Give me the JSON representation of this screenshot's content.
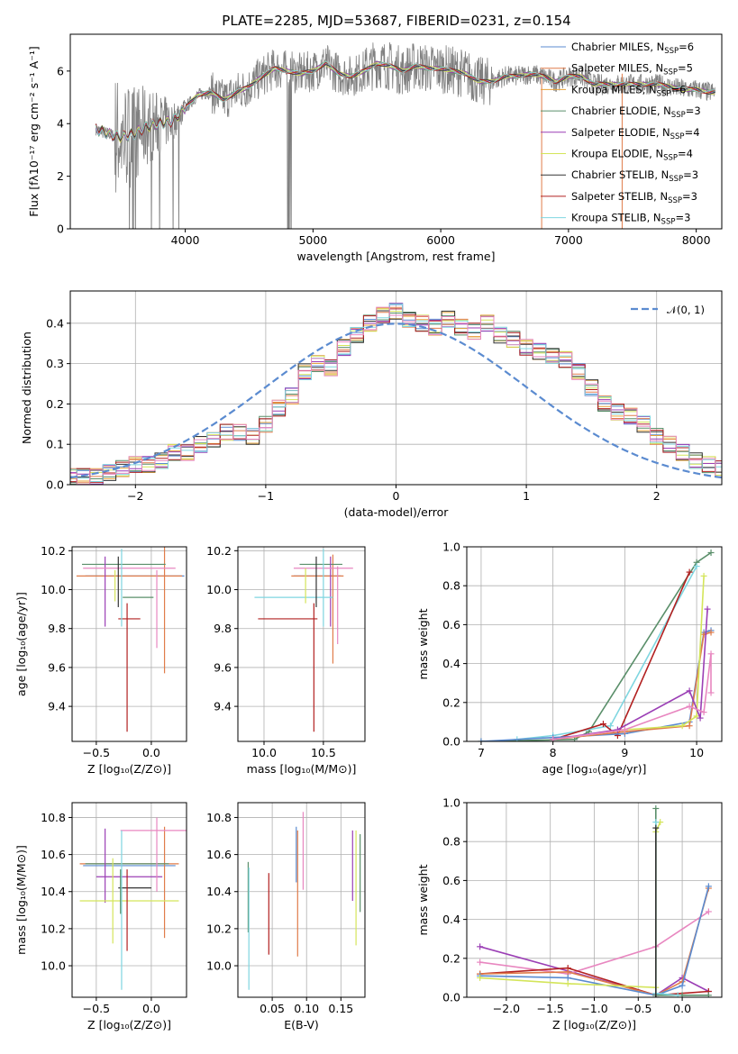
{
  "figure": {
    "title": "PLATE=2285, MJD=53687, FIBERID=0231, z=0.154"
  },
  "chart_data": [
    {
      "id": "spectrum",
      "type": "line",
      "title": "PLATE=2285, MJD=53687, FIBERID=0231, z=0.154",
      "xlabel": "wavelength [Angstrom, rest frame]",
      "ylabel": "Flux [fλ10⁻¹⁷ erg cm⁻² s⁻¹ A⁻¹]",
      "xlim": [
        3100,
        8200
      ],
      "ylim": [
        0,
        7.4
      ],
      "xticks": [
        "4000",
        "5000",
        "6000",
        "7000",
        "8000"
      ],
      "yticks": [
        "0",
        "2",
        "4",
        "6"
      ],
      "grid": false,
      "legend_position": "top-right",
      "data_color": "#808080",
      "data_continuum": {
        "x": [
          3300,
          3400,
          3500,
          3600,
          3700,
          3800,
          3900,
          4000,
          4100,
          4200,
          4300,
          4400,
          4500,
          4600,
          4700,
          4800,
          4900,
          5000,
          5100,
          5200,
          5300,
          5400,
          5500,
          5600,
          5700,
          5800,
          5900,
          6000,
          6100,
          6200,
          6300,
          6400,
          6500,
          6600,
          6700,
          6800,
          6900,
          7000,
          7100,
          7200,
          7300,
          7400,
          7500,
          7600,
          7700,
          7800,
          7900,
          8000,
          8100,
          8200
        ],
        "y": [
          3.8,
          3.6,
          3.5,
          3.6,
          3.9,
          4.0,
          4.1,
          4.6,
          5.1,
          5.2,
          4.9,
          5.2,
          5.4,
          5.8,
          6.1,
          6.0,
          5.9,
          6.0,
          6.3,
          5.9,
          5.8,
          6.0,
          6.3,
          6.2,
          6.0,
          6.2,
          6.1,
          6.1,
          6.0,
          5.9,
          5.6,
          5.6,
          5.8,
          5.8,
          5.9,
          5.8,
          5.6,
          5.8,
          5.8,
          5.5,
          5.5,
          5.5,
          5.5,
          5.5,
          5.5,
          5.4,
          5.3,
          5.3,
          5.2,
          5.2
        ]
      },
      "series": [
        {
          "name": "Chabrier MILES, N",
          "sub": "SSP",
          "suffix": "=6",
          "color": "#5b8bd0"
        },
        {
          "name": "Salpeter MILES, N",
          "sub": "SSP",
          "suffix": "=5",
          "color": "#e07c4a"
        },
        {
          "name": "Kroupa MILES, N",
          "sub": "SSP",
          "suffix": "=6",
          "color": "#e8a33a"
        },
        {
          "name": "Chabrier ELODIE, N",
          "sub": "SSP",
          "suffix": "=3",
          "color": "#5a8f6a"
        },
        {
          "name": "Salpeter ELODIE, N",
          "sub": "SSP",
          "suffix": "=4",
          "color": "#9b3fb5"
        },
        {
          "name": "Kroupa ELODIE, N",
          "sub": "SSP",
          "suffix": "=4",
          "color": "#d4e55a"
        },
        {
          "name": "Chabrier STELIB, N",
          "sub": "SSP",
          "suffix": "=3",
          "color": "#333333"
        },
        {
          "name": "Salpeter STELIB, N",
          "sub": "SSP",
          "suffix": "=3",
          "color": "#b22020"
        },
        {
          "name": "Kroupa STELIB, N",
          "sub": "SSP",
          "suffix": "=3",
          "color": "#7fd6e0"
        }
      ]
    },
    {
      "id": "residuals",
      "type": "step",
      "xlabel": "(data-model)/error",
      "ylabel": "Normed distribution",
      "xlim": [
        -2.5,
        2.5
      ],
      "ylim": [
        0,
        0.48
      ],
      "xticks": [
        "−2",
        "−1",
        "0",
        "1",
        "2"
      ],
      "yticks": [
        "0.0",
        "0.1",
        "0.2",
        "0.3",
        "0.4"
      ],
      "grid": true,
      "legend_position": "top-right",
      "legend_label": "𝒩(0, 1)",
      "gaussian": {
        "mean": 0,
        "sigma": 1,
        "color": "#5b8bd0"
      },
      "bin_width": 0.1,
      "histogram": [
        0.02,
        0.02,
        0.02,
        0.03,
        0.04,
        0.05,
        0.05,
        0.06,
        0.08,
        0.08,
        0.1,
        0.11,
        0.13,
        0.13,
        0.12,
        0.15,
        0.19,
        0.22,
        0.28,
        0.3,
        0.29,
        0.34,
        0.37,
        0.4,
        0.42,
        0.43,
        0.41,
        0.4,
        0.39,
        0.41,
        0.39,
        0.38,
        0.4,
        0.37,
        0.36,
        0.34,
        0.33,
        0.32,
        0.31,
        0.28,
        0.24,
        0.2,
        0.18,
        0.17,
        0.15,
        0.12,
        0.1,
        0.08,
        0.06,
        0.05,
        0.04
      ]
    },
    {
      "id": "age-vs-Z",
      "type": "errorbar",
      "xlabel": "Z [log₁₀(Z/Z⊙)]",
      "ylabel": "age  [log₁₀(age/yr)]",
      "xlim": [
        -0.72,
        0.32
      ],
      "ylim": [
        9.22,
        10.22
      ],
      "xticks": [
        "−0.5",
        "0.0"
      ],
      "yticks": [
        "9.4",
        "9.6",
        "9.8",
        "10.0",
        "10.2"
      ],
      "grid": true,
      "points": [
        {
          "x": -0.15,
          "y": 10.07,
          "xerr": 0.45,
          "yerr": 0.0,
          "color": "#5b8bd0"
        },
        {
          "x": -0.2,
          "y": 10.07,
          "xerr": 0.48,
          "yerr": 0.0,
          "color": "#e07c4a"
        },
        {
          "x": 0.12,
          "y": 9.9,
          "xerr": 0.0,
          "yerr": 0.33,
          "color": "#e07c4a"
        },
        {
          "x": -0.25,
          "y": 10.13,
          "xerr": 0.38,
          "yerr": 0.0,
          "color": "#5a8f6a"
        },
        {
          "x": -0.42,
          "y": 9.99,
          "xerr": 0.0,
          "yerr": 0.18,
          "color": "#9b3fb5"
        },
        {
          "x": -0.2,
          "y": 10.11,
          "xerr": 0.42,
          "yerr": 0.0,
          "color": "#e887c0"
        },
        {
          "x": 0.05,
          "y": 9.9,
          "xerr": 0.0,
          "yerr": 0.2,
          "color": "#e887c0"
        },
        {
          "x": -0.2,
          "y": 9.85,
          "xerr": 0.1,
          "yerr": 0.0,
          "color": "#b22020"
        },
        {
          "x": -0.22,
          "y": 9.6,
          "xerr": 0.0,
          "yerr": 0.33,
          "color": "#b22020"
        },
        {
          "x": -0.12,
          "y": 9.96,
          "xerr": 0.14,
          "yerr": 0.0,
          "color": "#5a8f6a"
        },
        {
          "x": -0.27,
          "y": 10.01,
          "xerr": 0.0,
          "yerr": 0.2,
          "color": "#7fd6e0"
        },
        {
          "x": -0.33,
          "y": 10.02,
          "xerr": 0.0,
          "yerr": 0.08,
          "color": "#d4e55a"
        },
        {
          "x": -0.3,
          "y": 10.04,
          "xerr": 0.0,
          "yerr": 0.13,
          "color": "#333333"
        }
      ]
    },
    {
      "id": "age-vs-mass",
      "type": "errorbar",
      "xlabel": "mass [log₁₀(M/M⊙)]",
      "ylabel": "",
      "xlim": [
        9.78,
        10.85
      ],
      "ylim": [
        9.22,
        10.22
      ],
      "xticks": [
        "10.0",
        "10.5"
      ],
      "yticks": [
        "9.4",
        "9.6",
        "9.8",
        "10.0",
        "10.2"
      ],
      "grid": true,
      "points": [
        {
          "x": 10.45,
          "y": 10.07,
          "xerr": 0.2,
          "yerr": 0.0,
          "color": "#5b8bd0"
        },
        {
          "x": 10.45,
          "y": 10.07,
          "xerr": 0.22,
          "yerr": 0.0,
          "color": "#e07c4a"
        },
        {
          "x": 10.58,
          "y": 9.9,
          "xerr": 0.0,
          "yerr": 0.28,
          "color": "#e07c4a"
        },
        {
          "x": 10.48,
          "y": 10.13,
          "xerr": 0.18,
          "yerr": 0.0,
          "color": "#5a8f6a"
        },
        {
          "x": 10.56,
          "y": 9.99,
          "xerr": 0.0,
          "yerr": 0.18,
          "color": "#9b3fb5"
        },
        {
          "x": 10.5,
          "y": 10.11,
          "xerr": 0.25,
          "yerr": 0.0,
          "color": "#e887c0"
        },
        {
          "x": 10.62,
          "y": 9.92,
          "xerr": 0.0,
          "yerr": 0.2,
          "color": "#e887c0"
        },
        {
          "x": 10.2,
          "y": 9.85,
          "xerr": 0.25,
          "yerr": 0.0,
          "color": "#b22020"
        },
        {
          "x": 10.42,
          "y": 9.6,
          "xerr": 0.0,
          "yerr": 0.33,
          "color": "#b22020"
        },
        {
          "x": 10.25,
          "y": 9.96,
          "xerr": 0.33,
          "yerr": 0.0,
          "color": "#7fd6e0"
        },
        {
          "x": 10.5,
          "y": 10.01,
          "xerr": 0.0,
          "yerr": 0.2,
          "color": "#7fd6e0"
        },
        {
          "x": 10.35,
          "y": 10.02,
          "xerr": 0.0,
          "yerr": 0.09,
          "color": "#d4e55a"
        },
        {
          "x": 10.44,
          "y": 10.04,
          "xerr": 0.0,
          "yerr": 0.13,
          "color": "#333333"
        }
      ]
    },
    {
      "id": "mass-weight-vs-age",
      "type": "line",
      "xlabel": "age  [log₁₀(age/yr)]",
      "ylabel": "mass weight",
      "xlim": [
        6.8,
        10.35
      ],
      "ylim": [
        0,
        1
      ],
      "xticks": [
        "7",
        "8",
        "9",
        "10"
      ],
      "yticks": [
        "0.0",
        "0.2",
        "0.4",
        "0.6",
        "0.8",
        "1.0"
      ],
      "grid": true,
      "series": [
        {
          "color": "#5a8f6a",
          "x": [
            7.0,
            8.3,
            8.5,
            10.0,
            10.2
          ],
          "y": [
            0.0,
            0.01,
            0.05,
            0.92,
            0.97
          ]
        },
        {
          "color": "#7fd6e0",
          "x": [
            7.5,
            8.0,
            8.8,
            10.0
          ],
          "y": [
            0.01,
            0.03,
            0.08,
            0.9
          ]
        },
        {
          "color": "#b22020",
          "x": [
            8.0,
            8.7,
            8.9,
            9.9
          ],
          "y": [
            0.01,
            0.09,
            0.03,
            0.87
          ]
        },
        {
          "color": "#5b8bd0",
          "x": [
            7.0,
            8.0,
            9.0,
            9.9,
            10.1,
            10.2
          ],
          "y": [
            0.0,
            0.02,
            0.04,
            0.1,
            0.56,
            0.57
          ]
        },
        {
          "color": "#e07c4a",
          "x": [
            8.0,
            9.0,
            9.9,
            10.1,
            10.2
          ],
          "y": [
            0.01,
            0.05,
            0.08,
            0.55,
            0.56
          ]
        },
        {
          "color": "#d4e55a",
          "x": [
            8.0,
            9.0,
            9.8,
            10.0,
            10.1
          ],
          "y": [
            0.01,
            0.06,
            0.08,
            0.13,
            0.85
          ]
        },
        {
          "color": "#9b3fb5",
          "x": [
            8.0,
            8.9,
            9.9,
            10.05,
            10.15
          ],
          "y": [
            0.01,
            0.06,
            0.26,
            0.12,
            0.68
          ]
        },
        {
          "color": "#e887c0",
          "x": [
            8.0,
            9.0,
            9.9,
            10.1,
            10.2,
            10.2
          ],
          "y": [
            0.01,
            0.06,
            0.18,
            0.15,
            0.45,
            0.25
          ]
        }
      ]
    },
    {
      "id": "mass-vs-Z",
      "type": "errorbar",
      "xlabel": "Z [log₁₀(Z/Z⊙)]",
      "ylabel": "mass [log₁₀(M/M⊙)]",
      "xlim": [
        -0.72,
        0.32
      ],
      "ylim": [
        9.83,
        10.88
      ],
      "xticks": [
        "−0.5",
        "0.0"
      ],
      "yticks": [
        "10.0",
        "10.2",
        "10.4",
        "10.6",
        "10.8"
      ],
      "grid": true,
      "points": [
        {
          "x": -0.2,
          "y": 10.54,
          "xerr": 0.42,
          "yerr": 0.0,
          "color": "#5b8bd0"
        },
        {
          "x": -0.2,
          "y": 10.55,
          "xerr": 0.45,
          "yerr": 0.0,
          "color": "#e07c4a"
        },
        {
          "x": 0.12,
          "y": 10.45,
          "xerr": 0.0,
          "yerr": 0.3,
          "color": "#e07c4a"
        },
        {
          "x": -0.22,
          "y": 10.55,
          "xerr": 0.38,
          "yerr": 0.0,
          "color": "#5a8f6a"
        },
        {
          "x": -0.42,
          "y": 10.54,
          "xerr": 0.0,
          "yerr": 0.2,
          "color": "#9b3fb5"
        },
        {
          "x": -0.2,
          "y": 10.48,
          "xerr": 0.3,
          "yerr": 0.0,
          "color": "#9b3fb5"
        },
        {
          "x": 0.02,
          "y": 10.73,
          "xerr": 0.3,
          "yerr": 0.0,
          "color": "#e887c0"
        },
        {
          "x": 0.05,
          "y": 10.6,
          "xerr": 0.0,
          "yerr": 0.2,
          "color": "#e887c0"
        },
        {
          "x": -0.2,
          "y": 10.35,
          "xerr": 0.45,
          "yerr": 0.0,
          "color": "#d4e55a"
        },
        {
          "x": -0.35,
          "y": 10.35,
          "xerr": 0.0,
          "yerr": 0.23,
          "color": "#d4e55a"
        },
        {
          "x": -0.15,
          "y": 10.42,
          "xerr": 0.15,
          "yerr": 0.0,
          "color": "#333333"
        },
        {
          "x": -0.22,
          "y": 10.3,
          "xerr": 0.0,
          "yerr": 0.22,
          "color": "#b22020"
        },
        {
          "x": -0.27,
          "y": 10.3,
          "xerr": 0.0,
          "yerr": 0.43,
          "color": "#7fd6e0"
        },
        {
          "x": -0.28,
          "y": 10.4,
          "xerr": 0.0,
          "yerr": 0.12,
          "color": "#5a8f6a"
        }
      ]
    },
    {
      "id": "mass-vs-EBV",
      "type": "errorbar",
      "xlabel": "E(B-V)",
      "ylabel": "",
      "xlim": [
        0.0,
        0.185
      ],
      "ylim": [
        9.83,
        10.88
      ],
      "xticks": [
        "0.05",
        "0.10",
        "0.15"
      ],
      "yticks": [
        "10.0",
        "10.2",
        "10.4",
        "10.6",
        "10.8"
      ],
      "grid": true,
      "points": [
        {
          "x": 0.015,
          "y": 10.37,
          "xerr": 0.0,
          "yerr": 0.19,
          "color": "#5a8f6a"
        },
        {
          "x": 0.016,
          "y": 10.2,
          "xerr": 0.0,
          "yerr": 0.33,
          "color": "#7fd6e0"
        },
        {
          "x": 0.045,
          "y": 10.28,
          "xerr": 0.0,
          "yerr": 0.22,
          "color": "#b22020"
        },
        {
          "x": 0.085,
          "y": 10.6,
          "xerr": 0.0,
          "yerr": 0.15,
          "color": "#5b8bd0"
        },
        {
          "x": 0.087,
          "y": 10.39,
          "xerr": 0.0,
          "yerr": 0.34,
          "color": "#e07c4a"
        },
        {
          "x": 0.095,
          "y": 10.62,
          "xerr": 0.0,
          "yerr": 0.21,
          "color": "#e887c0"
        },
        {
          "x": 0.167,
          "y": 10.54,
          "xerr": 0.0,
          "yerr": 0.19,
          "color": "#9b3fb5"
        },
        {
          "x": 0.172,
          "y": 10.42,
          "xerr": 0.0,
          "yerr": 0.31,
          "color": "#d4e55a"
        },
        {
          "x": 0.178,
          "y": 10.5,
          "xerr": 0.0,
          "yerr": 0.21,
          "color": "#5a8f6a"
        }
      ]
    },
    {
      "id": "mass-weight-vs-Z",
      "type": "line",
      "xlabel": "Z [log₁₀(Z/Z⊙)]",
      "ylabel": "mass weight",
      "xlim": [
        -2.45,
        0.45
      ],
      "ylim": [
        0,
        1
      ],
      "xticks": [
        "−2.0",
        "−1.5",
        "−1.0",
        "−0.5",
        "0.0"
      ],
      "yticks": [
        "0.0",
        "0.2",
        "0.4",
        "0.6",
        "0.8",
        "1.0"
      ],
      "grid": true,
      "series": [
        {
          "color": "#9b3fb5",
          "x": [
            -2.3,
            -0.3,
            0.0,
            0.3
          ],
          "y": [
            0.26,
            0.01,
            0.1,
            0.03
          ]
        },
        {
          "color": "#e887c0",
          "x": [
            -2.3,
            -1.3,
            -0.3,
            0.3
          ],
          "y": [
            0.18,
            0.12,
            0.26,
            0.44
          ]
        },
        {
          "color": "#b22020",
          "x": [
            -2.3,
            -1.3,
            -0.3,
            0.3
          ],
          "y": [
            0.12,
            0.15,
            0.01,
            0.03
          ]
        },
        {
          "color": "#e07c4a",
          "x": [
            -2.3,
            -1.3,
            -0.3,
            0.0,
            0.3
          ],
          "y": [
            0.12,
            0.13,
            0.01,
            0.08,
            0.56
          ]
        },
        {
          "color": "#5b8bd0",
          "x": [
            -2.3,
            -1.3,
            -0.3,
            0.0,
            0.3
          ],
          "y": [
            0.11,
            0.1,
            0.01,
            0.06,
            0.57
          ]
        },
        {
          "color": "#d4e55a",
          "x": [
            -2.3,
            -1.3,
            -0.3,
            -0.3,
            -0.25
          ],
          "y": [
            0.1,
            0.07,
            0.05,
            0.85,
            0.9
          ]
        },
        {
          "color": "#5a8f6a",
          "x": [
            -0.3,
            -0.3,
            0.0,
            0.3
          ],
          "y": [
            0.97,
            0.01,
            0.01,
            0.01
          ]
        },
        {
          "color": "#7fd6e0",
          "x": [
            -0.3,
            -0.3,
            -0.05
          ],
          "y": [
            0.9,
            0.02,
            0.01
          ]
        },
        {
          "color": "#333333",
          "x": [
            -0.3,
            -0.3
          ],
          "y": [
            0.87,
            0.0
          ]
        }
      ]
    }
  ]
}
